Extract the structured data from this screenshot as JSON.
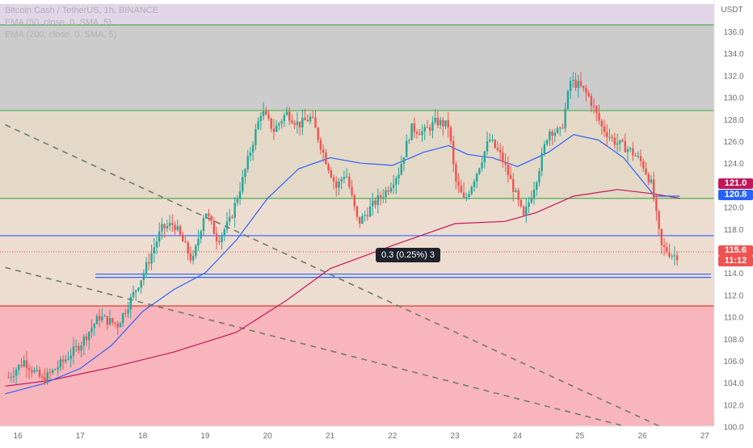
{
  "header": {
    "symbol_line": "Bitcoin Cash / TetherUS, 1h, BINANCE",
    "ema_line_1": "EMA (50, close, 0, SMA, 5)",
    "ema_line_2": "EMA (200, close, 0, SMA, 5)"
  },
  "price_axis": {
    "currency": "USDT",
    "ticks": [
      "136.0",
      "134.0",
      "132.0",
      "130.0",
      "128.0",
      "126.0",
      "124.0",
      "122.0",
      "120.0",
      "118.0",
      "116.0",
      "114.0",
      "112.0",
      "110.0",
      "108.0",
      "106.0",
      "104.0",
      "102.0",
      "100.0"
    ]
  },
  "time_axis": {
    "ticks": [
      "16",
      "17",
      "18",
      "19",
      "20",
      "21",
      "22",
      "23",
      "24",
      "25",
      "26",
      "27"
    ]
  },
  "price_tags": {
    "ema50": "121.0",
    "ema200": "120.8",
    "last_price": "115.6",
    "countdown": "11:12"
  },
  "measure_tooltip": "0.3 (0.25%) 3",
  "colors": {
    "up": "#26a69a",
    "down": "#ef5350",
    "ema50": "#2962ff",
    "ema200": "#c2185b",
    "zone_top": "#e1d5e7",
    "zone_grey": "#cccccc",
    "zone_tan": "#e4d8c6",
    "zone_light": "#eddcd0",
    "zone_red": "#f8b5bb",
    "level_green": "#4caf50",
    "level_blue": "#2962ff",
    "level_red": "#e53935"
  },
  "chart_data": {
    "type": "candlestick",
    "y_range": [
      99.5,
      138.5
    ],
    "x_range_days": [
      "16",
      "27"
    ],
    "horizontal_levels": [
      136.6,
      128.8,
      120.8,
      117.4,
      113.9,
      113.6,
      111.0
    ],
    "zones": [
      {
        "from": 136.6,
        "to": 138.5,
        "fill": "zone_top"
      },
      {
        "from": 128.8,
        "to": 136.6,
        "fill": "zone_grey"
      },
      {
        "from": 120.8,
        "to": 128.8,
        "fill": "zone_tan"
      },
      {
        "from": 111.0,
        "to": 120.8,
        "fill": "zone_light"
      },
      {
        "from": 99.5,
        "to": 111.0,
        "fill": "zone_red"
      }
    ],
    "ema50_points": [
      [
        15.8,
        103.0
      ],
      [
        16.4,
        103.9
      ],
      [
        17.0,
        105.3
      ],
      [
        17.5,
        107.4
      ],
      [
        18.0,
        110.5
      ],
      [
        18.5,
        112.5
      ],
      [
        19.0,
        114.0
      ],
      [
        19.5,
        117.0
      ],
      [
        20.0,
        120.8
      ],
      [
        20.5,
        123.5
      ],
      [
        21.0,
        124.5
      ],
      [
        21.5,
        124.0
      ],
      [
        22.0,
        123.8
      ],
      [
        22.5,
        125.0
      ],
      [
        22.9,
        125.6
      ],
      [
        23.2,
        124.8
      ],
      [
        23.6,
        124.5
      ],
      [
        24.0,
        123.7
      ],
      [
        24.5,
        125.0
      ],
      [
        24.9,
        126.6
      ],
      [
        25.3,
        126.1
      ],
      [
        25.7,
        124.5
      ],
      [
        26.2,
        121.0
      ],
      [
        26.6,
        121.0
      ]
    ],
    "ema200_points": [
      [
        15.8,
        103.7
      ],
      [
        16.5,
        104.2
      ],
      [
        17.5,
        105.4
      ],
      [
        18.5,
        106.8
      ],
      [
        19.5,
        108.6
      ],
      [
        20.3,
        111.5
      ],
      [
        21.0,
        114.4
      ],
      [
        22.0,
        116.5
      ],
      [
        23.0,
        118.5
      ],
      [
        23.8,
        118.7
      ],
      [
        24.3,
        119.5
      ],
      [
        24.9,
        121.0
      ],
      [
        25.6,
        121.6
      ],
      [
        26.2,
        121.2
      ],
      [
        26.6,
        120.8
      ]
    ],
    "price_anchors": [
      [
        15.85,
        104.5
      ],
      [
        16.1,
        106.0
      ],
      [
        16.4,
        104.2
      ],
      [
        16.7,
        105.8
      ],
      [
        17.0,
        107.5
      ],
      [
        17.3,
        110.0
      ],
      [
        17.6,
        109.3
      ],
      [
        17.8,
        111.5
      ],
      [
        18.0,
        113.8
      ],
      [
        18.3,
        118.0
      ],
      [
        18.5,
        118.5
      ],
      [
        18.8,
        115.0
      ],
      [
        19.0,
        119.8
      ],
      [
        19.2,
        117.0
      ],
      [
        19.4,
        118.8
      ],
      [
        19.6,
        122.5
      ],
      [
        19.9,
        128.8
      ],
      [
        20.1,
        127.0
      ],
      [
        20.3,
        128.6
      ],
      [
        20.5,
        127.5
      ],
      [
        20.7,
        128.2
      ],
      [
        20.9,
        124.8
      ],
      [
        21.1,
        121.8
      ],
      [
        21.25,
        123.2
      ],
      [
        21.45,
        118.5
      ],
      [
        21.7,
        120.3
      ],
      [
        21.9,
        121.5
      ],
      [
        22.1,
        123.2
      ],
      [
        22.3,
        127.2
      ],
      [
        22.5,
        126.8
      ],
      [
        22.7,
        127.8
      ],
      [
        22.9,
        127.4
      ],
      [
        23.0,
        122.5
      ],
      [
        23.15,
        120.5
      ],
      [
        23.35,
        123.2
      ],
      [
        23.55,
        126.2
      ],
      [
        23.75,
        124.5
      ],
      [
        23.95,
        121.5
      ],
      [
        24.1,
        119.0
      ],
      [
        24.3,
        122.5
      ],
      [
        24.5,
        127.0
      ],
      [
        24.7,
        126.8
      ],
      [
        24.85,
        131.5
      ],
      [
        25.0,
        131.0
      ],
      [
        25.15,
        130.0
      ],
      [
        25.35,
        127.3
      ],
      [
        25.55,
        126.0
      ],
      [
        25.8,
        125.2
      ],
      [
        26.0,
        124.0
      ],
      [
        26.15,
        122.0
      ],
      [
        26.3,
        116.4
      ],
      [
        26.5,
        115.6
      ],
      [
        26.6,
        115.6
      ]
    ],
    "trendlines": [
      {
        "style": "dashed",
        "from": [
          15.8,
          127.5
        ],
        "to": [
          26.6,
          99.2
        ]
      },
      {
        "style": "dashed",
        "from": [
          15.8,
          114.5
        ],
        "to": [
          26.3,
          99.2
        ]
      }
    ]
  }
}
